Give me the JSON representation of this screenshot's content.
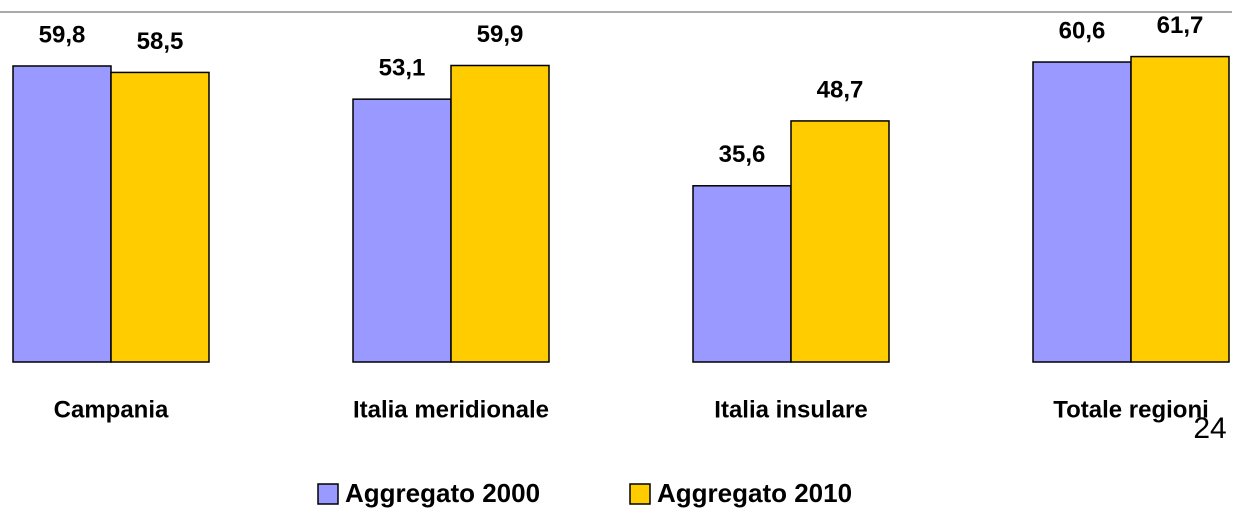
{
  "chart_data": {
    "type": "bar",
    "categories": [
      "Campania",
      "Italia meridionale",
      "Italia insulare",
      "Totale regioni"
    ],
    "series": [
      {
        "name": "Aggregato 2000",
        "color": "#9999ff",
        "values": [
          59.8,
          53.1,
          35.6,
          60.6
        ],
        "value_labels": [
          "59,8",
          "53,1",
          "35,6",
          "60,6"
        ]
      },
      {
        "name": "Aggregato 2010",
        "color": "#ffcc00",
        "values": [
          58.5,
          59.9,
          48.7,
          61.7
        ],
        "value_labels": [
          "58,5",
          "59,9",
          "48,7",
          "61,7"
        ]
      }
    ]
  },
  "page_number": "24"
}
